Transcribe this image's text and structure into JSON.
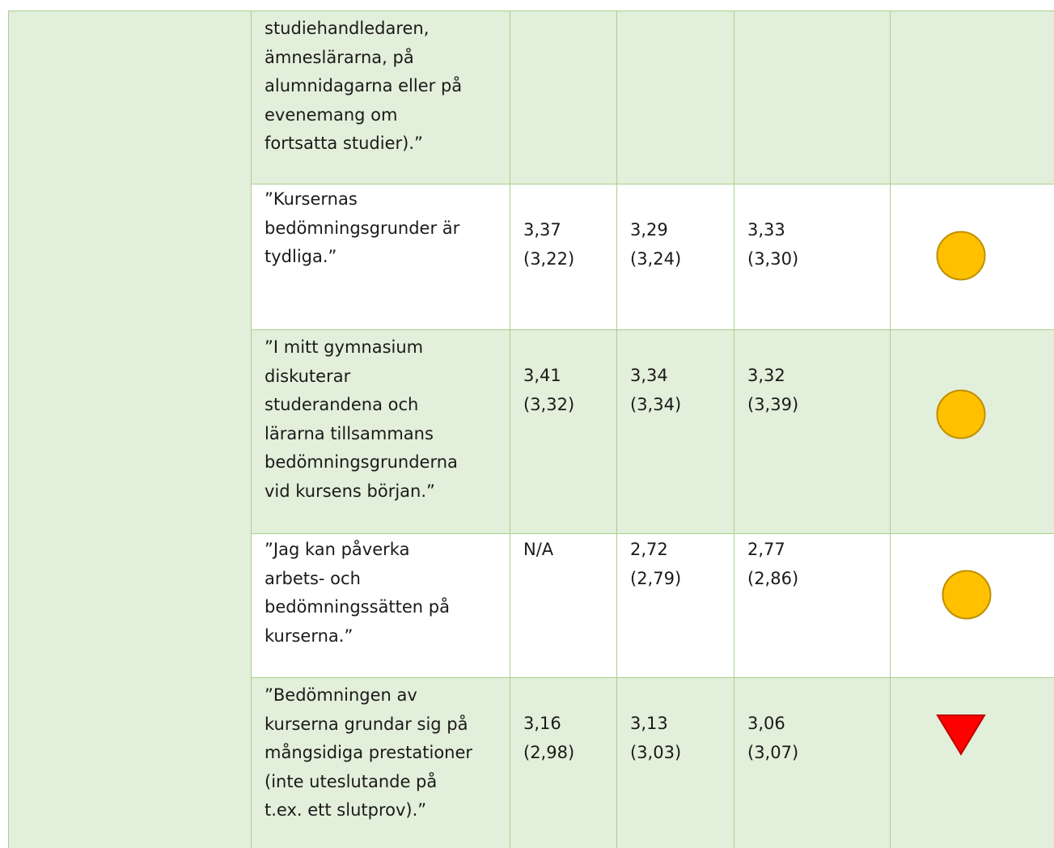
{
  "table": {
    "rows": [
      {
        "question": [
          "studiehandledaren,",
          "ämneslärarna, på",
          "alumnidagarna eller på",
          "evenemang om",
          "fortsatta studier).”"
        ]
      },
      {
        "question": [
          "”Kursernas",
          "bedömningsgrunder är",
          "tydliga.”"
        ],
        "cells": [
          [
            "3,37",
            "(3,22)"
          ],
          [
            "3,29",
            "(3,24)"
          ],
          [
            "3,33",
            "(3,30)"
          ]
        ],
        "status": "circle"
      },
      {
        "question": [
          "”I mitt gymnasium",
          "diskuterar",
          "studerandena och",
          "lärarna tillsammans",
          "bedömningsgrunderna",
          "vid kursens början.”"
        ],
        "cells": [
          [
            "3,41",
            "(3,32)"
          ],
          [
            "3,34",
            "(3,34)"
          ],
          [
            "3,32",
            "(3,39)"
          ]
        ],
        "status": "circle"
      },
      {
        "question": [
          "”Jag kan påverka",
          "arbets- och",
          "bedömningssätten på",
          "kurserna.”"
        ],
        "cells": [
          [
            "N/A"
          ],
          [
            "2,72",
            "(2,79)"
          ],
          [
            "2,77",
            "(2,86)"
          ]
        ],
        "status": "circle"
      },
      {
        "question": [
          "”Bedömningen av",
          "kurserna grundar sig på",
          "mångsidiga prestationer",
          "(inte uteslutande på",
          "t.ex. ett slutprov).”"
        ],
        "cells": [
          [
            "3,16",
            "(2,98)"
          ],
          [
            "3,13",
            "(3,03)"
          ],
          [
            "3,06",
            "(3,07)"
          ]
        ],
        "status": "triangle-down"
      }
    ]
  }
}
